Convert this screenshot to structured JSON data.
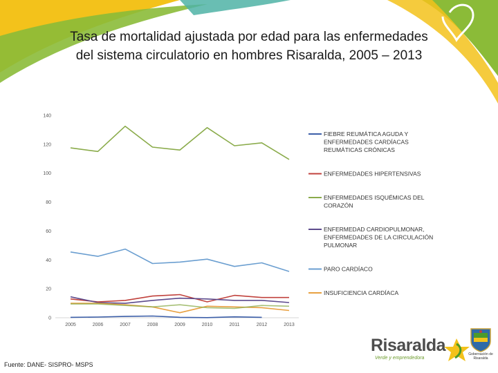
{
  "slide": {
    "title_line1": "Tasa de mortalidad ajustada por edad para las enfermedades",
    "title_line2": "del sistema circulatorio en hombres Risaralda, 2005 – 2013",
    "source": "Fuente: DANE- SISPRO- MSPS",
    "logo_text": "Risaralda",
    "logo_tagline": "Verde y emprendedora",
    "seal_caption": "Gobernación de Risaralda"
  },
  "colors": {
    "fiebre": "#3b5ea8",
    "hipertensivas": "#c0413c",
    "isquemicas": "#8aab4a",
    "cardiopulmonar": "#5c4a8c",
    "paro": "#6a9ed0",
    "insuficiencia": "#e8a040"
  },
  "chart_data": {
    "type": "line",
    "title": "",
    "xlabel": "",
    "ylabel": "",
    "categories": [
      "2005",
      "2006",
      "2007",
      "2008",
      "2009",
      "2010",
      "2011",
      "2012",
      "2013"
    ],
    "ylim": [
      0,
      140
    ],
    "yticks": [
      0,
      20,
      40,
      60,
      80,
      100,
      120,
      140
    ],
    "grid": false,
    "legend_position": "right",
    "series": [
      {
        "key": "fiebre",
        "name": "FIEBRE REUMÁTICA AGUDA Y ENFERMEDADES CARDÍACAS REUMÁTICAS CRÓNICAS",
        "legend_lines": [
          "FIEBRE REUMÁTICA AGUDA Y",
          "ENFERMEDADES CARDÍACAS",
          "REUMÁTICAS CRÓNICAS"
        ],
        "values": [
          0.3,
          0.5,
          0.9,
          1.2,
          0.3,
          0.1,
          0.6,
          0.3,
          null
        ]
      },
      {
        "key": "hipertensivas",
        "name": "ENFERMEDADES HIPERTENSIVAS",
        "legend_lines": [
          "ENFERMEDADES HIPERTENSIVAS"
        ],
        "values": [
          13,
          11,
          12,
          15,
          16,
          11,
          15.5,
          14,
          14
        ]
      },
      {
        "key": "isquemicas",
        "name": "ENFERMEDADES ISQUÉMICAS DEL CORAZÓN",
        "legend_lines": [
          "ENFERMEDADES ISQUÉMICAS DEL",
          "CORAZÓN"
        ],
        "values": [
          117.5,
          115,
          132.5,
          118,
          116,
          131.5,
          119,
          121,
          109.5
        ]
      },
      {
        "key": "cardiopulmonar",
        "name": "ENFERMEDAD CARDIOPULMONAR, ENFERMEDADES DE LA CIRCULACIÓN PULMONAR",
        "legend_lines": [
          "ENFERMEDAD CARDIOPULMONAR,",
          "ENFERMEDADES DE LA CIRCULACIÓN",
          "PULMONAR"
        ],
        "values": [
          14.5,
          10.5,
          10,
          12,
          13.5,
          13,
          12,
          12,
          10.5
        ]
      },
      {
        "key": "paro",
        "name": "PARO CARDÍACO",
        "legend_lines": [
          "PARO CARDÍACO"
        ],
        "values": [
          45.5,
          42.5,
          47.5,
          37.5,
          38.5,
          40.5,
          35.5,
          38,
          32
        ]
      },
      {
        "key": "insuficiencia",
        "name": "INSUFICIENCIA CARDÍACA",
        "legend_lines": [
          "INSUFICIENCIA CARDÍACA"
        ],
        "values": [
          10,
          10,
          9,
          7.5,
          3.5,
          8,
          7.5,
          7,
          5
        ]
      },
      {
        "key": "isquemicas",
        "name": "",
        "legend_lines": [],
        "values": [
          9.5,
          9.5,
          8.5,
          7.5,
          9,
          7,
          6.5,
          8.5,
          8
        ]
      }
    ]
  }
}
